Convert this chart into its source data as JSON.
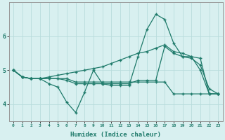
{
  "xlabel": "Humidex (Indice chaleur)",
  "x_values": [
    0,
    1,
    2,
    3,
    4,
    5,
    6,
    7,
    8,
    9,
    10,
    11,
    12,
    13,
    14,
    15,
    16,
    17,
    18,
    19,
    20,
    21,
    22,
    23
  ],
  "line1": [
    5.0,
    4.8,
    4.75,
    4.75,
    4.6,
    4.5,
    4.05,
    3.75,
    4.35,
    5.0,
    4.6,
    4.55,
    4.55,
    4.55,
    5.4,
    6.2,
    6.65,
    6.5,
    5.8,
    5.4,
    5.35,
    5.15,
    4.45,
    4.3
  ],
  "line2": [
    5.0,
    4.8,
    4.75,
    4.75,
    4.75,
    4.75,
    4.7,
    4.6,
    4.6,
    4.6,
    4.6,
    4.6,
    4.6,
    4.6,
    4.7,
    4.7,
    4.7,
    5.7,
    5.5,
    5.4,
    5.4,
    5.0,
    4.3,
    4.3
  ],
  "line3": [
    5.0,
    4.8,
    4.75,
    4.75,
    4.75,
    4.75,
    4.75,
    4.65,
    4.65,
    4.65,
    4.65,
    4.65,
    4.65,
    4.65,
    4.65,
    4.65,
    4.65,
    4.65,
    4.3,
    4.3,
    4.3,
    4.3,
    4.3,
    4.3
  ],
  "line4": [
    5.0,
    4.8,
    4.75,
    4.75,
    4.8,
    4.85,
    4.9,
    4.95,
    5.0,
    5.05,
    5.1,
    5.2,
    5.3,
    5.4,
    5.5,
    5.55,
    5.65,
    5.75,
    5.55,
    5.5,
    5.4,
    5.35,
    4.3,
    4.3
  ],
  "line_color": "#1e7a6a",
  "bg_color": "#d8f0f0",
  "grid_color": "#b8dcdc",
  "ylim": [
    3.5,
    7.0
  ],
  "yticks": [
    4,
    5,
    6
  ],
  "figsize": [
    3.2,
    2.0
  ],
  "dpi": 100
}
